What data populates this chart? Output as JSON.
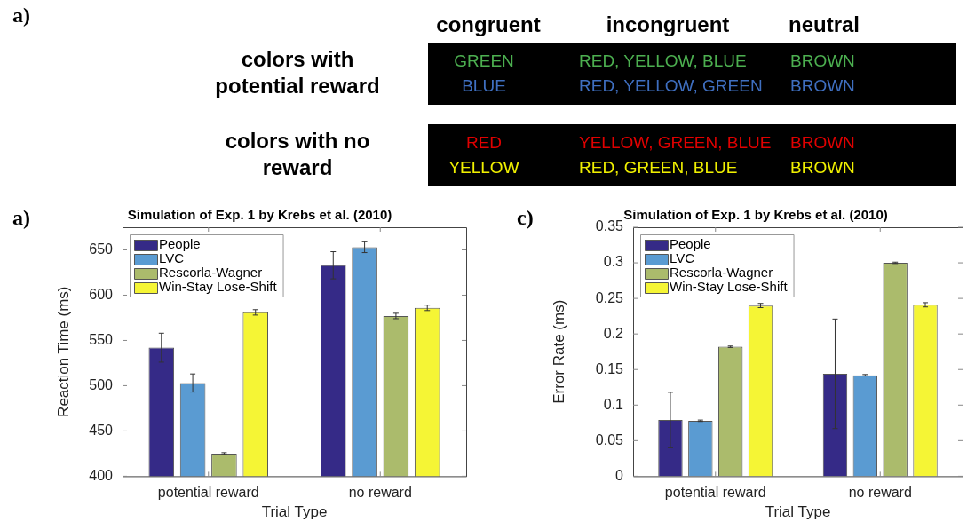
{
  "chart_data": [
    {
      "type": "other",
      "annotations": [
        "a)"
      ],
      "categories": [
        "congruent",
        "incongruent",
        "neutral"
      ],
      "y_categories": [
        "colors with potential reward",
        "colors with no reward"
      ],
      "cell_labels": [
        [
          "GREEN",
          "RED, YELLOW, BLUE",
          "BROWN"
        ],
        [
          "BLUE",
          "RED, YELLOW, GREEN",
          "BROWN"
        ],
        [
          "RED",
          "YELLOW, GREEN, BLUE",
          "BROWN"
        ],
        [
          "YELLOW",
          "RED, GREEN, BLUE",
          "BROWN"
        ]
      ],
      "colors": [
        "#4caf50",
        "#3f6fc0",
        "#e00000",
        "#f0f000"
      ]
    },
    {
      "type": "bar",
      "title": "Simulation of Exp. 1 by Krebs et al. (2010)",
      "xlabel": "Trial Type",
      "ylabel": "Reaction Time (ms)",
      "annotations": [
        "a)"
      ],
      "categories": [
        "potential reward",
        "no reward"
      ],
      "series": [
        {
          "name": "People",
          "color": "#352a87",
          "values": [
            542,
            633
          ],
          "errors": [
            16,
            15
          ]
        },
        {
          "name": "LVC",
          "color": "#5a9bd2",
          "values": [
            503,
            653
          ],
          "errors": [
            10,
            6
          ]
        },
        {
          "name": "Rescorla-Wagner",
          "color": "#abbb6c",
          "values": [
            425,
            577
          ],
          "errors": [
            1,
            3
          ]
        },
        {
          "name": "Win-Stay Lose-Shift",
          "color": "#f5f535",
          "values": [
            581,
            586
          ],
          "errors": [
            3,
            3
          ]
        }
      ],
      "ylim": [
        400,
        675
      ],
      "yticks": [
        400,
        450,
        500,
        550,
        600,
        650
      ],
      "legend": "top left"
    },
    {
      "type": "bar",
      "title": "Simulation of Exp. 1 by Krebs et al. (2010)",
      "xlabel": "Trial Type",
      "ylabel": "Error Rate (ms)",
      "annotations": [
        "c)"
      ],
      "categories": [
        "potential reward",
        "no reward"
      ],
      "series": [
        {
          "name": "People",
          "color": "#352a87",
          "values": [
            0.079,
            0.144
          ],
          "errors": [
            0.039,
            0.077
          ]
        },
        {
          "name": "LVC",
          "color": "#5a9bd2",
          "values": [
            0.078,
            0.142
          ],
          "errors": [
            0.001,
            0.001
          ]
        },
        {
          "name": "Rescorla-Wagner",
          "color": "#abbb6c",
          "values": [
            0.182,
            0.3
          ],
          "errors": [
            0.001,
            0.001
          ]
        },
        {
          "name": "Win-Stay Lose-Shift",
          "color": "#f5f535",
          "values": [
            0.24,
            0.241
          ],
          "errors": [
            0.003,
            0.003
          ]
        }
      ],
      "ylim": [
        0,
        0.35
      ],
      "yticks": [
        0,
        0.05,
        0.1,
        0.15,
        0.2,
        0.25,
        0.3,
        0.35
      ],
      "legend": "top left"
    }
  ]
}
